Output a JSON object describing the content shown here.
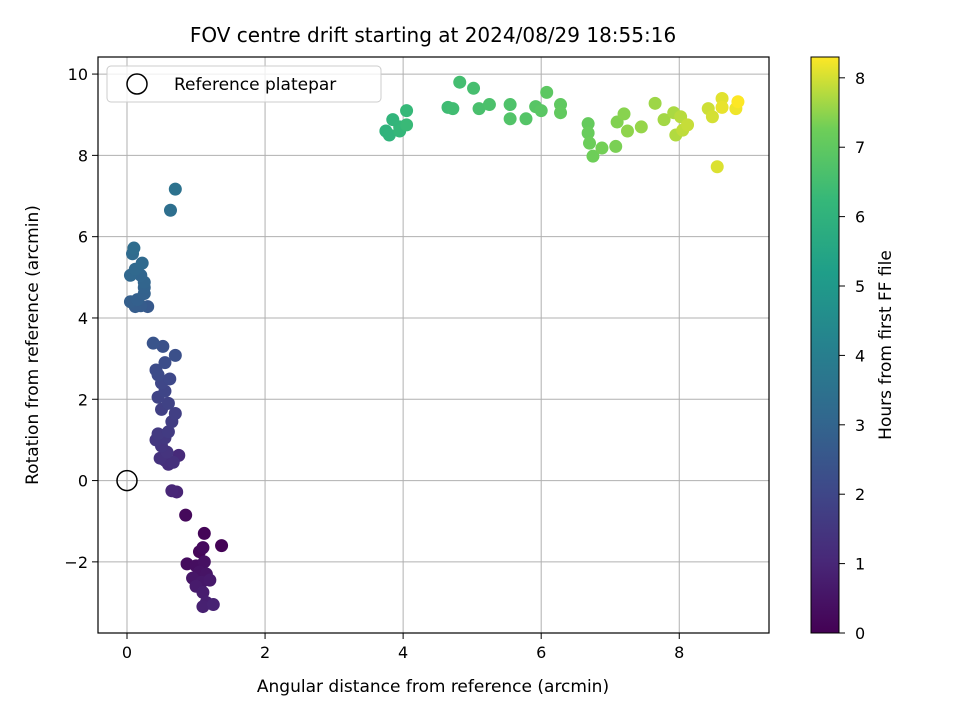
{
  "chart_data": {
    "type": "scatter",
    "title": "FOV centre drift starting at 2024/08/29 18:55:16",
    "xlabel": "Angular distance from reference (arcmin)",
    "ylabel": "Rotation from reference (arcmin)",
    "xlim": [
      -0.42,
      9.3
    ],
    "ylim": [
      -3.75,
      10.42
    ],
    "xticks": [
      0,
      2,
      4,
      6,
      8
    ],
    "xtick_labels": [
      "0",
      "2",
      "4",
      "6",
      "8"
    ],
    "yticks": [
      -2,
      0,
      2,
      4,
      6,
      8,
      10
    ],
    "ytick_labels": [
      "−2",
      "0",
      "2",
      "4",
      "6",
      "8",
      "10"
    ],
    "grid": true,
    "legend": {
      "placement": "top-left",
      "entries": [
        "Reference platepar"
      ]
    },
    "reference_point": {
      "label": "Reference platepar",
      "x": 0,
      "y": 0
    },
    "colorbar": {
      "label": "Hours from first FF file",
      "colormap": "viridis",
      "range": [
        0,
        8.3
      ],
      "ticks": [
        0,
        1,
        2,
        3,
        4,
        5,
        6,
        7,
        8
      ],
      "tick_labels": [
        "0",
        "1",
        "2",
        "3",
        "4",
        "5",
        "6",
        "7",
        "8"
      ]
    },
    "points": [
      {
        "x": 1.37,
        "y": -1.6,
        "h": 0.05
      },
      {
        "x": 1.12,
        "y": -1.3,
        "h": 0.1
      },
      {
        "x": 0.85,
        "y": -0.85,
        "h": 0.2
      },
      {
        "x": 1.05,
        "y": -1.75,
        "h": 0.15
      },
      {
        "x": 1.1,
        "y": -1.65,
        "h": 0.25
      },
      {
        "x": 0.87,
        "y": -2.05,
        "h": 0.3
      },
      {
        "x": 1.0,
        "y": -2.1,
        "h": 0.35
      },
      {
        "x": 1.12,
        "y": -2.0,
        "h": 0.4
      },
      {
        "x": 1.05,
        "y": -2.25,
        "h": 0.45
      },
      {
        "x": 1.15,
        "y": -2.3,
        "h": 0.5
      },
      {
        "x": 0.95,
        "y": -2.4,
        "h": 0.55
      },
      {
        "x": 1.08,
        "y": -2.5,
        "h": 0.6
      },
      {
        "x": 1.2,
        "y": -2.45,
        "h": 0.65
      },
      {
        "x": 1.0,
        "y": -2.6,
        "h": 0.7
      },
      {
        "x": 1.1,
        "y": -2.75,
        "h": 0.75
      },
      {
        "x": 1.15,
        "y": -3.0,
        "h": 0.8
      },
      {
        "x": 1.1,
        "y": -3.1,
        "h": 0.85
      },
      {
        "x": 1.25,
        "y": -3.05,
        "h": 0.9
      },
      {
        "x": 0.72,
        "y": -0.28,
        "h": 0.95
      },
      {
        "x": 0.65,
        "y": -0.25,
        "h": 1.0
      },
      {
        "x": 0.75,
        "y": 0.62,
        "h": 1.1
      },
      {
        "x": 0.6,
        "y": 0.4,
        "h": 1.2
      },
      {
        "x": 0.55,
        "y": 0.5,
        "h": 1.25
      },
      {
        "x": 0.67,
        "y": 0.45,
        "h": 1.3
      },
      {
        "x": 0.48,
        "y": 0.55,
        "h": 1.35
      },
      {
        "x": 0.58,
        "y": 0.7,
        "h": 1.4
      },
      {
        "x": 0.5,
        "y": 0.85,
        "h": 1.45
      },
      {
        "x": 0.42,
        "y": 1.0,
        "h": 1.5
      },
      {
        "x": 0.55,
        "y": 1.05,
        "h": 1.55
      },
      {
        "x": 0.45,
        "y": 1.15,
        "h": 1.6
      },
      {
        "x": 0.6,
        "y": 1.2,
        "h": 1.65
      },
      {
        "x": 0.65,
        "y": 1.45,
        "h": 1.7
      },
      {
        "x": 0.7,
        "y": 1.65,
        "h": 1.75
      },
      {
        "x": 0.5,
        "y": 1.75,
        "h": 1.8
      },
      {
        "x": 0.6,
        "y": 1.9,
        "h": 1.85
      },
      {
        "x": 0.45,
        "y": 2.05,
        "h": 1.9
      },
      {
        "x": 0.55,
        "y": 2.2,
        "h": 1.95
      },
      {
        "x": 0.5,
        "y": 2.4,
        "h": 2.0
      },
      {
        "x": 0.62,
        "y": 2.5,
        "h": 2.05
      },
      {
        "x": 0.45,
        "y": 2.6,
        "h": 2.1
      },
      {
        "x": 0.42,
        "y": 2.72,
        "h": 2.15
      },
      {
        "x": 0.55,
        "y": 2.9,
        "h": 2.2
      },
      {
        "x": 0.7,
        "y": 3.08,
        "h": 2.3
      },
      {
        "x": 0.52,
        "y": 3.3,
        "h": 2.35
      },
      {
        "x": 0.38,
        "y": 3.38,
        "h": 2.45
      },
      {
        "x": 0.3,
        "y": 4.28,
        "h": 2.6
      },
      {
        "x": 0.2,
        "y": 4.3,
        "h": 2.7
      },
      {
        "x": 0.12,
        "y": 4.28,
        "h": 2.75
      },
      {
        "x": 0.05,
        "y": 4.4,
        "h": 2.8
      },
      {
        "x": 0.15,
        "y": 4.45,
        "h": 2.85
      },
      {
        "x": 0.25,
        "y": 4.6,
        "h": 2.9
      },
      {
        "x": 0.25,
        "y": 4.75,
        "h": 2.95
      },
      {
        "x": 0.25,
        "y": 4.88,
        "h": 3.0
      },
      {
        "x": 0.2,
        "y": 5.05,
        "h": 3.05
      },
      {
        "x": 0.05,
        "y": 5.05,
        "h": 3.1
      },
      {
        "x": 0.12,
        "y": 5.2,
        "h": 3.15
      },
      {
        "x": 0.22,
        "y": 5.35,
        "h": 3.2
      },
      {
        "x": 0.08,
        "y": 5.58,
        "h": 3.25
      },
      {
        "x": 0.1,
        "y": 5.72,
        "h": 3.3
      },
      {
        "x": 0.63,
        "y": 6.65,
        "h": 3.4
      },
      {
        "x": 0.7,
        "y": 7.17,
        "h": 3.5
      },
      {
        "x": 3.75,
        "y": 8.6,
        "h": 6.0
      },
      {
        "x": 3.8,
        "y": 8.5,
        "h": 6.05
      },
      {
        "x": 3.85,
        "y": 8.88,
        "h": 6.1
      },
      {
        "x": 3.95,
        "y": 8.7,
        "h": 6.15
      },
      {
        "x": 3.95,
        "y": 8.6,
        "h": 6.2
      },
      {
        "x": 4.05,
        "y": 9.1,
        "h": 6.25
      },
      {
        "x": 4.05,
        "y": 8.75,
        "h": 6.3
      },
      {
        "x": 4.65,
        "y": 9.18,
        "h": 6.4
      },
      {
        "x": 4.72,
        "y": 9.15,
        "h": 6.45
      },
      {
        "x": 4.82,
        "y": 9.8,
        "h": 6.5
      },
      {
        "x": 5.02,
        "y": 9.65,
        "h": 6.55
      },
      {
        "x": 5.1,
        "y": 9.15,
        "h": 6.6
      },
      {
        "x": 5.25,
        "y": 9.25,
        "h": 6.65
      },
      {
        "x": 5.55,
        "y": 9.25,
        "h": 6.7
      },
      {
        "x": 5.55,
        "y": 8.9,
        "h": 6.75
      },
      {
        "x": 5.78,
        "y": 8.9,
        "h": 6.8
      },
      {
        "x": 5.92,
        "y": 9.2,
        "h": 6.85
      },
      {
        "x": 6.0,
        "y": 9.1,
        "h": 6.9
      },
      {
        "x": 6.08,
        "y": 9.55,
        "h": 6.95
      },
      {
        "x": 6.28,
        "y": 9.25,
        "h": 7.0
      },
      {
        "x": 6.28,
        "y": 9.05,
        "h": 7.05
      },
      {
        "x": 6.68,
        "y": 8.78,
        "h": 7.1
      },
      {
        "x": 6.68,
        "y": 8.55,
        "h": 7.15
      },
      {
        "x": 6.7,
        "y": 8.3,
        "h": 7.2
      },
      {
        "x": 6.75,
        "y": 7.98,
        "h": 7.25
      },
      {
        "x": 6.88,
        "y": 8.18,
        "h": 7.3
      },
      {
        "x": 7.08,
        "y": 8.22,
        "h": 7.35
      },
      {
        "x": 7.1,
        "y": 8.82,
        "h": 7.4
      },
      {
        "x": 7.2,
        "y": 9.02,
        "h": 7.45
      },
      {
        "x": 7.25,
        "y": 8.6,
        "h": 7.5
      },
      {
        "x": 7.45,
        "y": 8.7,
        "h": 7.55
      },
      {
        "x": 7.65,
        "y": 9.28,
        "h": 7.6
      },
      {
        "x": 7.78,
        "y": 8.88,
        "h": 7.65
      },
      {
        "x": 7.92,
        "y": 9.05,
        "h": 7.7
      },
      {
        "x": 7.95,
        "y": 8.5,
        "h": 7.75
      },
      {
        "x": 8.02,
        "y": 8.95,
        "h": 7.8
      },
      {
        "x": 8.05,
        "y": 8.62,
        "h": 7.85
      },
      {
        "x": 8.12,
        "y": 8.75,
        "h": 7.9
      },
      {
        "x": 8.42,
        "y": 9.15,
        "h": 7.95
      },
      {
        "x": 8.48,
        "y": 8.95,
        "h": 8.0
      },
      {
        "x": 8.55,
        "y": 7.72,
        "h": 8.05
      },
      {
        "x": 8.62,
        "y": 9.4,
        "h": 8.1
      },
      {
        "x": 8.62,
        "y": 9.18,
        "h": 8.15
      },
      {
        "x": 8.82,
        "y": 9.15,
        "h": 8.2
      },
      {
        "x": 8.85,
        "y": 9.32,
        "h": 8.3
      }
    ]
  }
}
